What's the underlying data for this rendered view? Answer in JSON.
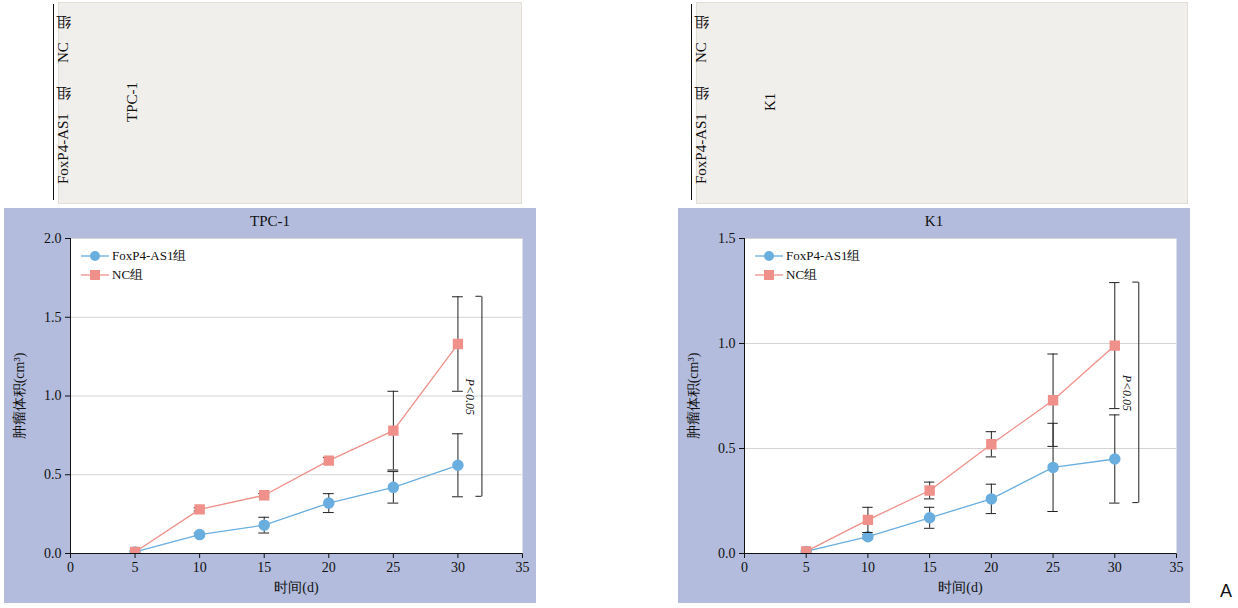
{
  "panel_label": "A",
  "photos": [
    {
      "cell_line": "TPC-1",
      "rows": [
        "NC组",
        "FoxP4-AS1组"
      ]
    },
    {
      "cell_line": "K1",
      "rows": [
        "NC组",
        "FoxP4-AS1组"
      ]
    }
  ],
  "chart_data": [
    {
      "type": "line",
      "title": "TPC-1",
      "x_label": "时间(d)",
      "y_label": "肿瘤体积(cm³)",
      "x": [
        5,
        10,
        15,
        20,
        25,
        30
      ],
      "series": [
        {
          "name": "FoxP4-AS1组",
          "color": "#6aaee0",
          "marker": "circle",
          "values": [
            0.01,
            0.12,
            0.18,
            0.32,
            0.42,
            0.56
          ],
          "errors": [
            0,
            0.01,
            0.05,
            0.06,
            0.1,
            0.2
          ]
        },
        {
          "name": "NC组",
          "color": "#f0908a",
          "marker": "square",
          "values": [
            0.01,
            0.28,
            0.37,
            0.59,
            0.78,
            1.33
          ],
          "errors": [
            0,
            0.01,
            0.01,
            0.02,
            0.25,
            0.3
          ]
        }
      ],
      "xlim": [
        0,
        35
      ],
      "xticks": [
        0,
        5,
        10,
        15,
        20,
        25,
        30,
        35
      ],
      "ylim": [
        0,
        2
      ],
      "yticks": [
        {
          "value": 0,
          "label": "0.0"
        },
        {
          "value": 0.5,
          "label": "0.5"
        },
        {
          "value": 1,
          "label": "1.0"
        },
        {
          "value": 1.5,
          "label": "1.5"
        },
        {
          "value": 2,
          "label": "2.0"
        }
      ],
      "grid": true,
      "legend": "top-left",
      "annotations": [
        {
          "text": "P<0.05",
          "x": 30,
          "y1": 0.36,
          "y2": 1.63
        }
      ]
    },
    {
      "type": "line",
      "title": "K1",
      "x_label": "时间(d)",
      "y_label": "肿瘤体积(cm³)",
      "x": [
        5,
        10,
        15,
        20,
        25,
        30
      ],
      "series": [
        {
          "name": "FoxP4-AS1组",
          "color": "#6aaee0",
          "marker": "circle",
          "values": [
            0.01,
            0.08,
            0.17,
            0.26,
            0.41,
            0.45
          ],
          "errors": [
            0,
            0.01,
            0.05,
            0.07,
            0.21,
            0.21
          ]
        },
        {
          "name": "NC组",
          "color": "#f0908a",
          "marker": "square",
          "values": [
            0.01,
            0.16,
            0.3,
            0.52,
            0.73,
            0.99
          ],
          "errors": [
            0,
            0.06,
            0.04,
            0.06,
            0.22,
            0.3
          ]
        }
      ],
      "xlim": [
        0,
        35
      ],
      "xticks": [
        0,
        5,
        10,
        15,
        20,
        25,
        30,
        35
      ],
      "ylim": [
        0,
        1.5
      ],
      "yticks": [
        {
          "value": 0,
          "label": "0.0"
        },
        {
          "value": 0.5,
          "label": "0.5"
        },
        {
          "value": 1,
          "label": "1.0"
        },
        {
          "value": 1.5,
          "label": "1.5"
        }
      ],
      "grid": true,
      "legend": "top-left",
      "annotations": [
        {
          "text": "P<0.05",
          "x": 30,
          "y1": 0.24,
          "y2": 1.29
        }
      ]
    }
  ]
}
